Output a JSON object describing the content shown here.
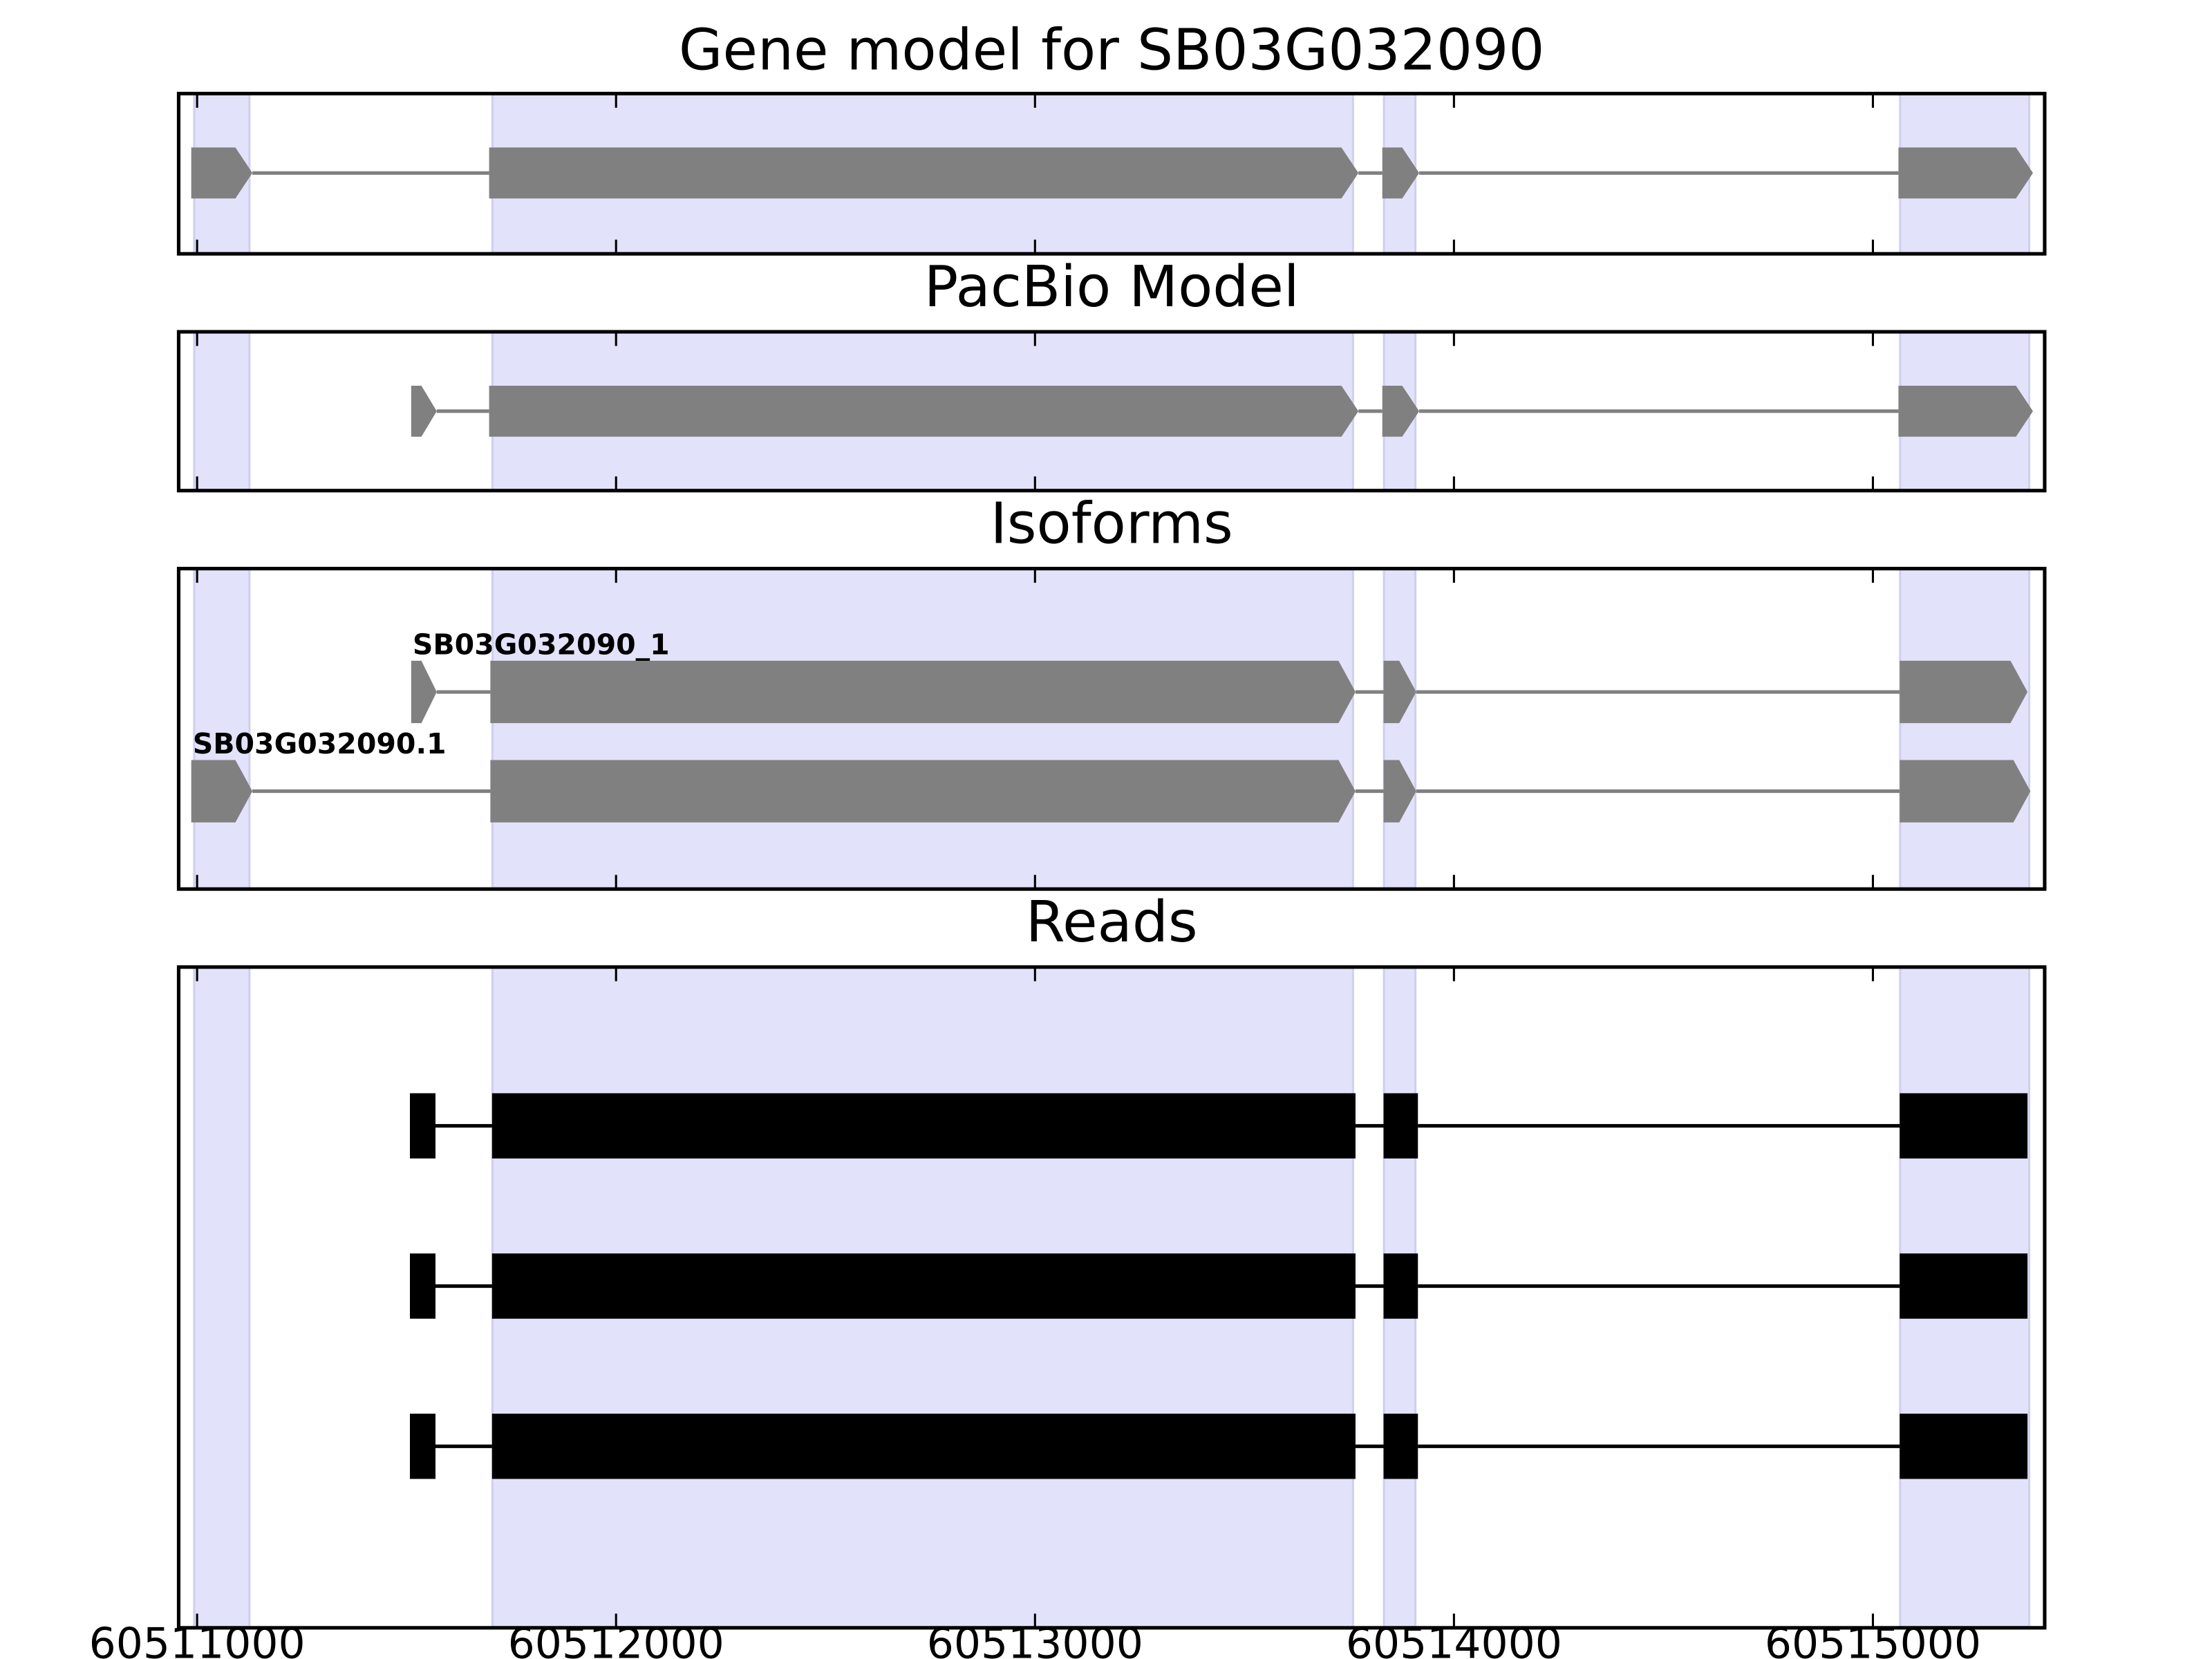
{
  "xaxis": {
    "xlim": [
      60510956,
      60515410
    ],
    "xticks": [
      60511000,
      60512000,
      60513000,
      60514000,
      60515000
    ]
  },
  "highlights": [
    [
      60510993,
      60511125
    ],
    [
      60511705,
      60513759
    ],
    [
      60513833,
      60513908
    ],
    [
      60515065,
      60515373
    ]
  ],
  "highlight_color": "#e2e2fa",
  "chart_data": [
    {
      "type": "gene",
      "title": "Gene model for SB03G032090",
      "style": "arrow",
      "series": [
        {
          "color": "#808080",
          "exons": [
            [
              60510986,
              60511132
            ],
            [
              60511697,
              60513772
            ],
            [
              60513829,
              60513917
            ],
            [
              60515061,
              60515382
            ]
          ]
        }
      ]
    },
    {
      "type": "gene",
      "title": "PacBio Model",
      "style": "arrow",
      "series": [
        {
          "color": "#808080",
          "exons": [
            [
              60511511,
              60511572
            ],
            [
              60511697,
              60513772
            ],
            [
              60513829,
              60513917
            ],
            [
              60515061,
              60515382
            ]
          ]
        }
      ]
    },
    {
      "type": "gene",
      "title": "Isoforms",
      "style": "arrow",
      "series": [
        {
          "name": "SB03G032090_1",
          "color": "#808080",
          "exons": [
            [
              60511511,
              60511572
            ],
            [
              60511700,
              60513765
            ],
            [
              60513832,
              60513910
            ],
            [
              60515064,
              60515369
            ]
          ]
        },
        {
          "name": "SB03G032090.1",
          "color": "#808080",
          "exons": [
            [
              60510986,
              60511132
            ],
            [
              60511700,
              60513765
            ],
            [
              60513832,
              60513910
            ],
            [
              60515064,
              60515376
            ]
          ]
        }
      ]
    },
    {
      "type": "gene",
      "title": "Reads",
      "style": "block",
      "tick_labels": true,
      "series": [
        {
          "color": "#000000",
          "exons": [
            [
              60511508,
              60511569
            ],
            [
              60511704,
              60513765
            ],
            [
              60513832,
              60513914
            ],
            [
              60515064,
              60515369
            ]
          ]
        },
        {
          "color": "#000000",
          "exons": [
            [
              60511508,
              60511569
            ],
            [
              60511704,
              60513765
            ],
            [
              60513832,
              60513914
            ],
            [
              60515064,
              60515369
            ]
          ]
        },
        {
          "color": "#000000",
          "exons": [
            [
              60511508,
              60511569
            ],
            [
              60511704,
              60513765
            ],
            [
              60513832,
              60513914
            ],
            [
              60515064,
              60515369
            ]
          ]
        }
      ]
    }
  ]
}
